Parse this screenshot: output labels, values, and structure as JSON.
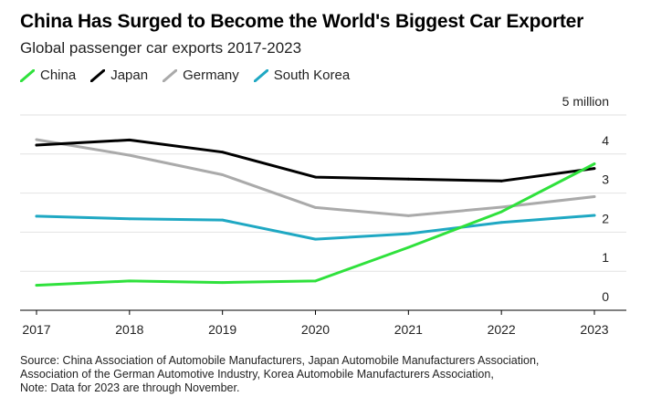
{
  "title": "China Has Surged to Become the World's Biggest Car Exporter",
  "subtitle": "Global passenger car exports 2017-2023",
  "legend": [
    {
      "name": "China",
      "color": "#2fe13c"
    },
    {
      "name": "Japan",
      "color": "#000000"
    },
    {
      "name": "Germany",
      "color": "#aaaaaa"
    },
    {
      "name": "South Korea",
      "color": "#1fa8c3"
    }
  ],
  "source_lines": [
    "Source: China Association of Automobile Manufacturers, Japan Automobile Manufacturers Association,",
    "Association of the German Automotive Industry, Korea Automobile Manufacturers Association,",
    "Note: Data for 2023 are through November."
  ],
  "chart_data": {
    "type": "line",
    "x": [
      "2017",
      "2018",
      "2019",
      "2020",
      "2021",
      "2022",
      "2023"
    ],
    "ylim": [
      0,
      5
    ],
    "y_ticks": [
      {
        "value": 5,
        "label": "5 million"
      },
      {
        "value": 4,
        "label": "4"
      },
      {
        "value": 3,
        "label": "3"
      },
      {
        "value": 2,
        "label": "2"
      },
      {
        "value": 1,
        "label": "1"
      },
      {
        "value": 0,
        "label": "0"
      }
    ],
    "grid": true,
    "series": [
      {
        "name": "Germany",
        "color": "#aaaaaa",
        "values": [
          4.37,
          3.97,
          3.47,
          2.63,
          2.42,
          2.64,
          2.91
        ]
      },
      {
        "name": "South Korea",
        "color": "#1fa8c3",
        "values": [
          2.41,
          2.34,
          2.31,
          1.82,
          1.96,
          2.25,
          2.43
        ]
      },
      {
        "name": "Japan",
        "color": "#000000",
        "values": [
          4.23,
          4.36,
          4.05,
          3.41,
          3.36,
          3.31,
          3.63
        ]
      },
      {
        "name": "China",
        "color": "#2fe13c",
        "values": [
          0.64,
          0.75,
          0.71,
          0.75,
          1.61,
          2.52,
          3.75
        ]
      }
    ]
  }
}
